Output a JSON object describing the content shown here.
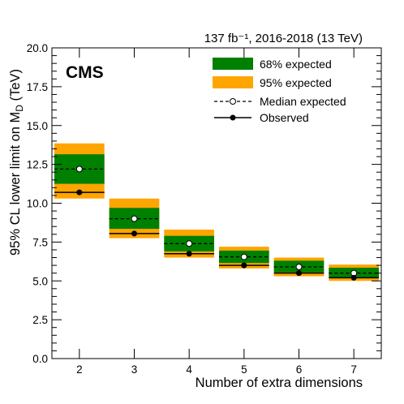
{
  "chart_data": {
    "type": "bar",
    "title": "",
    "lumi_text": "137 fb⁻¹, 2016-2018 (13 TeV)",
    "experiment_label": "CMS",
    "xlabel": "Number of extra dimensions",
    "ylabel": "95% CL lower limit on M",
    "ylabel_subscript": "D",
    "ylabel_unit": " (TeV)",
    "xlim": [
      1.5,
      7.5
    ],
    "ylim": [
      0.0,
      20.0
    ],
    "x_ticks": [
      2,
      3,
      4,
      5,
      6,
      7
    ],
    "y_ticks": [
      0.0,
      2.5,
      5.0,
      7.5,
      10.0,
      12.5,
      15.0,
      17.5,
      20.0
    ],
    "y_tick_labels": [
      "0.0",
      "2.5",
      "5.0",
      "7.5",
      "10.0",
      "12.5",
      "15.0",
      "17.5",
      "20.0"
    ],
    "legend_position": "top-right",
    "legend": {
      "band68": "68% expected",
      "band95": "95% expected",
      "median": "Median expected",
      "observed": "Observed"
    },
    "colors": {
      "band68": "#008000",
      "band95": "#ffa500",
      "line": "#000000"
    },
    "points": [
      {
        "n": 2,
        "x_low": 1.5,
        "x_high": 2.5,
        "observed": 10.7,
        "expected": 12.2,
        "band68": [
          11.25,
          13.15
        ],
        "band95": [
          10.3,
          13.85
        ]
      },
      {
        "n": 3,
        "x_low": 2.5,
        "x_high": 3.5,
        "observed": 8.05,
        "expected": 9.0,
        "band68": [
          8.35,
          9.7
        ],
        "band95": [
          7.75,
          10.3
        ]
      },
      {
        "n": 4,
        "x_low": 3.5,
        "x_high": 4.5,
        "observed": 6.75,
        "expected": 7.4,
        "band68": [
          6.9,
          7.9
        ],
        "band95": [
          6.5,
          8.3
        ]
      },
      {
        "n": 5,
        "x_low": 4.5,
        "x_high": 5.5,
        "observed": 6.0,
        "expected": 6.55,
        "band68": [
          6.15,
          6.95
        ],
        "band95": [
          5.8,
          7.2
        ]
      },
      {
        "n": 6,
        "x_low": 5.5,
        "x_high": 6.5,
        "observed": 5.5,
        "expected": 5.9,
        "band68": [
          5.55,
          6.3
        ],
        "band95": [
          5.3,
          6.5
        ]
      },
      {
        "n": 7,
        "x_low": 6.5,
        "x_high": 7.5,
        "observed": 5.2,
        "expected": 5.5,
        "band68": [
          5.2,
          5.85
        ],
        "band95": [
          5.0,
          6.05
        ]
      }
    ]
  }
}
